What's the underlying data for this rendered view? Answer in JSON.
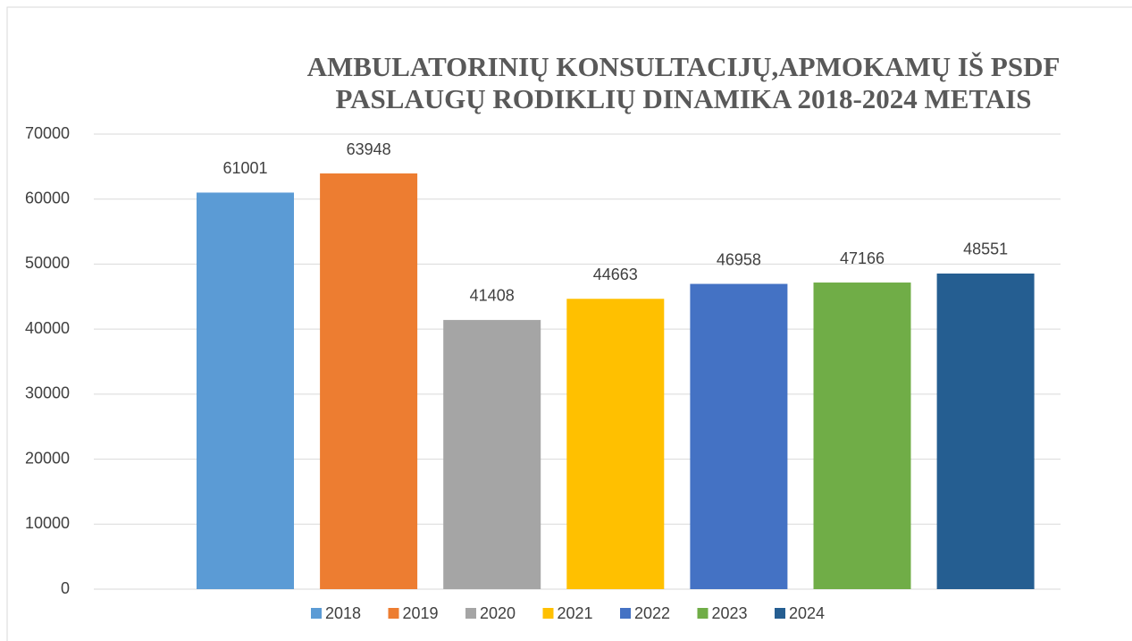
{
  "chart_data": {
    "type": "bar",
    "title": [
      "AMBULATORINIŲ KONSULTACIJŲ,APMOKAMŲ IŠ PSDF",
      "PASLAUGŲ RODIKLIŲ DINAMIKA  2018-2024 METAIS"
    ],
    "categories": [
      null
    ],
    "series": [
      {
        "name": "2018",
        "color": "#5b9bd5",
        "values": [
          61001
        ]
      },
      {
        "name": "2019",
        "color": "#ed7d31",
        "values": [
          63948
        ]
      },
      {
        "name": "2020",
        "color": "#a5a5a5",
        "values": [
          41408
        ]
      },
      {
        "name": "2021",
        "color": "#ffc000",
        "values": [
          44663
        ]
      },
      {
        "name": "2022",
        "color": "#4472c4",
        "values": [
          46958
        ]
      },
      {
        "name": "2023",
        "color": "#70ad47",
        "values": [
          47166
        ]
      },
      {
        "name": "2024",
        "color": "#255e91",
        "values": [
          48551
        ]
      }
    ],
    "ylim": [
      0,
      70000
    ],
    "yticks": [
      0,
      10000,
      20000,
      30000,
      40000,
      50000,
      60000,
      70000
    ],
    "grid": true,
    "legend": "bottom"
  }
}
